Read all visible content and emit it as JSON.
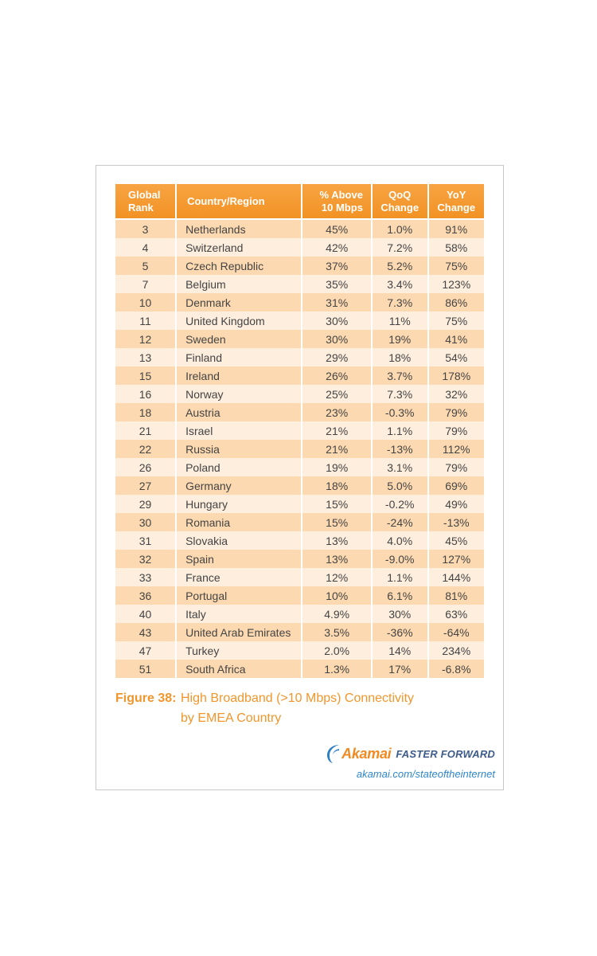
{
  "chart_data": {
    "type": "table",
    "columns": [
      {
        "key": "rank",
        "label_line1": "Global",
        "label_line2": "Rank"
      },
      {
        "key": "country",
        "label_line1": "Country/Region",
        "label_line2": ""
      },
      {
        "key": "above",
        "label_line1": "% Above",
        "label_line2": "10 Mbps"
      },
      {
        "key": "qoq",
        "label_line1": "QoQ",
        "label_line2": "Change"
      },
      {
        "key": "yoy",
        "label_line1": "YoY",
        "label_line2": "Change"
      }
    ],
    "rows": [
      {
        "rank": "3",
        "country": "Netherlands",
        "above": "45%",
        "qoq": "1.0%",
        "yoy": "91%"
      },
      {
        "rank": "4",
        "country": "Switzerland",
        "above": "42%",
        "qoq": "7.2%",
        "yoy": "58%"
      },
      {
        "rank": "5",
        "country": "Czech Republic",
        "above": "37%",
        "qoq": "5.2%",
        "yoy": "75%"
      },
      {
        "rank": "7",
        "country": "Belgium",
        "above": "35%",
        "qoq": "3.4%",
        "yoy": "123%"
      },
      {
        "rank": "10",
        "country": "Denmark",
        "above": "31%",
        "qoq": "7.3%",
        "yoy": "86%"
      },
      {
        "rank": "11",
        "country": "United Kingdom",
        "above": "30%",
        "qoq": "11%",
        "yoy": "75%"
      },
      {
        "rank": "12",
        "country": "Sweden",
        "above": "30%",
        "qoq": "19%",
        "yoy": "41%"
      },
      {
        "rank": "13",
        "country": "Finland",
        "above": "29%",
        "qoq": "18%",
        "yoy": "54%"
      },
      {
        "rank": "15",
        "country": "Ireland",
        "above": "26%",
        "qoq": "3.7%",
        "yoy": "178%"
      },
      {
        "rank": "16",
        "country": "Norway",
        "above": "25%",
        "qoq": "7.3%",
        "yoy": "32%"
      },
      {
        "rank": "18",
        "country": "Austria",
        "above": "23%",
        "qoq": "-0.3%",
        "yoy": "79%"
      },
      {
        "rank": "21",
        "country": "Israel",
        "above": "21%",
        "qoq": "1.1%",
        "yoy": "79%"
      },
      {
        "rank": "22",
        "country": "Russia",
        "above": "21%",
        "qoq": "-13%",
        "yoy": "112%"
      },
      {
        "rank": "26",
        "country": "Poland",
        "above": "19%",
        "qoq": "3.1%",
        "yoy": "79%"
      },
      {
        "rank": "27",
        "country": "Germany",
        "above": "18%",
        "qoq": "5.0%",
        "yoy": "69%"
      },
      {
        "rank": "29",
        "country": "Hungary",
        "above": "15%",
        "qoq": "-0.2%",
        "yoy": "49%"
      },
      {
        "rank": "30",
        "country": "Romania",
        "above": "15%",
        "qoq": "-24%",
        "yoy": "-13%"
      },
      {
        "rank": "31",
        "country": "Slovakia",
        "above": "13%",
        "qoq": "4.0%",
        "yoy": "45%"
      },
      {
        "rank": "32",
        "country": "Spain",
        "above": "13%",
        "qoq": "-9.0%",
        "yoy": "127%"
      },
      {
        "rank": "33",
        "country": "France",
        "above": "12%",
        "qoq": "1.1%",
        "yoy": "144%"
      },
      {
        "rank": "36",
        "country": "Portugal",
        "above": "10%",
        "qoq": "6.1%",
        "yoy": "81%"
      },
      {
        "rank": "40",
        "country": "Italy",
        "above": "4.9%",
        "qoq": "30%",
        "yoy": "63%"
      },
      {
        "rank": "43",
        "country": "United Arab Emirates",
        "above": "3.5%",
        "qoq": "-36%",
        "yoy": "-64%"
      },
      {
        "rank": "47",
        "country": "Turkey",
        "above": "2.0%",
        "qoq": "14%",
        "yoy": "234%"
      },
      {
        "rank": "51",
        "country": "South Africa",
        "above": "1.3%",
        "qoq": "17%",
        "yoy": "-6.8%"
      }
    ]
  },
  "caption": {
    "label": "Figure 38:",
    "line1": "High Broadband (>10 Mbps) Connectivity",
    "line2": "by EMEA Country"
  },
  "brand": {
    "logo_word": "Akamai",
    "tagline": "FASTER FORWARD",
    "url": "akamai.com/stateoftheinternet"
  },
  "colors": {
    "header": "#f29224",
    "row_dark": "#fcd9b0",
    "row_light": "#fdeedd",
    "caption": "#f0962c",
    "tagline": "#3c5a8a",
    "url": "#2e86c9"
  }
}
